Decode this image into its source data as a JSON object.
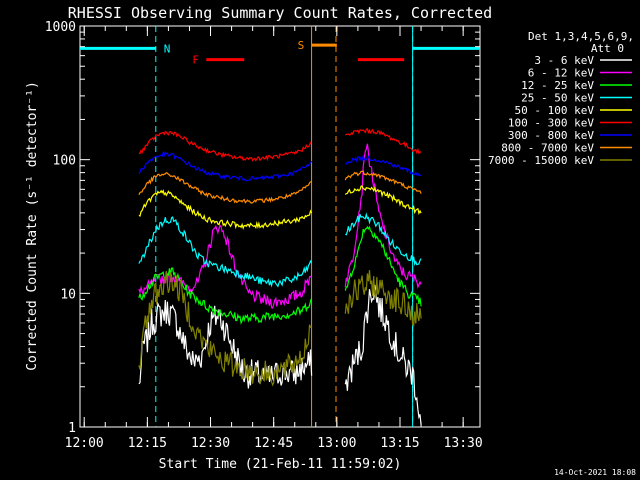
{
  "chart_data": {
    "type": "line",
    "title": "RHESSI Observing Summary Count Rates, Corrected",
    "xlabel": "Start Time (21-Feb-11 11:59:02)",
    "ylabel": "Corrected Count Rate (s⁻¹ detector⁻¹)",
    "yscale": "log",
    "ylim": [
      1,
      1000
    ],
    "xlim_min": [
      0,
      95
    ],
    "x_ticks": [
      {
        "min": 1,
        "label": "12:00"
      },
      {
        "min": 16,
        "label": "12:15"
      },
      {
        "min": 31,
        "label": "12:30"
      },
      {
        "min": 46,
        "label": "12:45"
      },
      {
        "min": 61,
        "label": "13:00"
      },
      {
        "min": 76,
        "label": "13:15"
      },
      {
        "min": 91,
        "label": "13:30"
      }
    ],
    "y_ticks": [
      {
        "v": 1,
        "label": "1"
      },
      {
        "v": 10,
        "label": "10"
      },
      {
        "v": 100,
        "label": "100"
      },
      {
        "v": 1000,
        "label": "1000"
      }
    ],
    "detectors": "Det 1,3,4,5,6,9,",
    "attenuator": "Att 0",
    "legend_placement": "top-right",
    "series": [
      {
        "name": "3 - 6 keV",
        "color": "#ffffff",
        "pts": [
          [
            14,
            2
          ],
          [
            15,
            4
          ],
          [
            16,
            4.5
          ],
          [
            17,
            6
          ],
          [
            19,
            7
          ],
          [
            21,
            7.5
          ],
          [
            23,
            6
          ],
          [
            25,
            4
          ],
          [
            27,
            3
          ],
          [
            29,
            3.5
          ],
          [
            31,
            6
          ],
          [
            33,
            7
          ],
          [
            35,
            5
          ],
          [
            37,
            3.5
          ],
          [
            39,
            2.5
          ],
          [
            42,
            2.5
          ],
          [
            45,
            2.3
          ],
          [
            48,
            2.6
          ],
          [
            51,
            2.5
          ],
          [
            53,
            2.8
          ],
          [
            55,
            3
          ]
        ],
        "pts2": [
          [
            63,
            2
          ],
          [
            65,
            3
          ],
          [
            67,
            4
          ],
          [
            68,
            7
          ],
          [
            69,
            10
          ],
          [
            70,
            11
          ],
          [
            71,
            8
          ],
          [
            73,
            6
          ],
          [
            75,
            4
          ],
          [
            77,
            3
          ],
          [
            79,
            2.5
          ],
          [
            80,
            1.8
          ],
          [
            81,
            1
          ]
        ]
      },
      {
        "name": "6 - 12 keV",
        "color": "#ff00ff",
        "pts": [
          [
            14,
            10
          ],
          [
            16,
            11
          ],
          [
            18,
            12.5
          ],
          [
            20,
            13
          ],
          [
            22,
            13.5
          ],
          [
            24,
            12
          ],
          [
            26,
            11
          ],
          [
            28,
            12
          ],
          [
            30,
            18
          ],
          [
            31.5,
            28
          ],
          [
            33,
            32
          ],
          [
            34.5,
            27
          ],
          [
            36,
            19
          ],
          [
            38,
            13
          ],
          [
            40,
            10
          ],
          [
            43,
            9
          ],
          [
            46,
            8.5
          ],
          [
            49,
            9
          ],
          [
            51,
            9.5
          ],
          [
            53,
            10.5
          ],
          [
            55,
            14
          ]
        ],
        "pts2": [
          [
            63,
            12
          ],
          [
            64,
            15
          ],
          [
            65,
            20
          ],
          [
            66,
            35
          ],
          [
            67,
            60
          ],
          [
            67.5,
            110
          ],
          [
            68,
            130
          ],
          [
            69,
            90
          ],
          [
            70,
            60
          ],
          [
            71,
            40
          ],
          [
            73,
            25
          ],
          [
            75,
            17
          ],
          [
            77,
            14
          ],
          [
            79,
            13
          ],
          [
            81,
            12
          ]
        ]
      },
      {
        "name": "12 - 25 keV",
        "color": "#00ff00",
        "pts": [
          [
            14,
            9
          ],
          [
            16,
            11
          ],
          [
            18,
            13
          ],
          [
            20,
            14
          ],
          [
            22,
            14.5
          ],
          [
            24,
            12
          ],
          [
            26,
            10
          ],
          [
            28,
            9
          ],
          [
            30,
            8
          ],
          [
            32,
            7.5
          ],
          [
            35,
            7
          ],
          [
            38,
            6.5
          ],
          [
            42,
            6.5
          ],
          [
            46,
            6.8
          ],
          [
            50,
            7
          ],
          [
            53,
            7.5
          ],
          [
            55,
            9
          ]
        ],
        "pts2": [
          [
            63,
            10
          ],
          [
            64,
            13
          ],
          [
            66,
            20
          ],
          [
            67,
            28
          ],
          [
            68,
            32
          ],
          [
            70,
            28
          ],
          [
            72,
            22
          ],
          [
            74,
            16
          ],
          [
            76,
            12
          ],
          [
            78,
            10
          ],
          [
            80,
            9
          ],
          [
            81,
            8.5
          ]
        ]
      },
      {
        "name": "25 - 50 keV",
        "color": "#00ffff",
        "pts": [
          [
            14,
            16
          ],
          [
            16,
            22
          ],
          [
            18,
            30
          ],
          [
            20,
            35
          ],
          [
            22,
            36
          ],
          [
            24,
            30
          ],
          [
            26,
            24
          ],
          [
            28,
            19
          ],
          [
            30,
            17
          ],
          [
            32,
            16
          ],
          [
            35,
            15
          ],
          [
            38,
            14
          ],
          [
            41,
            13
          ],
          [
            44,
            12
          ],
          [
            47,
            12
          ],
          [
            50,
            12.5
          ],
          [
            53,
            14
          ],
          [
            55,
            17
          ]
        ],
        "pts2": [
          [
            63,
            28
          ],
          [
            65,
            33
          ],
          [
            67,
            38
          ],
          [
            69,
            36
          ],
          [
            71,
            32
          ],
          [
            73,
            26
          ],
          [
            75,
            22
          ],
          [
            77,
            20
          ],
          [
            79,
            18
          ],
          [
            81,
            17
          ]
        ]
      },
      {
        "name": "50 - 100 keV",
        "color": "#ffff00",
        "pts": [
          [
            14,
            38
          ],
          [
            16,
            48
          ],
          [
            18,
            55
          ],
          [
            20,
            57
          ],
          [
            22,
            54
          ],
          [
            24,
            48
          ],
          [
            26,
            43
          ],
          [
            28,
            39
          ],
          [
            30,
            36
          ],
          [
            33,
            34
          ],
          [
            36,
            33
          ],
          [
            39,
            32
          ],
          [
            42,
            32
          ],
          [
            45,
            33
          ],
          [
            48,
            34
          ],
          [
            51,
            35
          ],
          [
            53,
            37
          ],
          [
            55,
            40
          ]
        ],
        "pts2": [
          [
            63,
            55
          ],
          [
            65,
            60
          ],
          [
            67,
            62
          ],
          [
            69,
            61
          ],
          [
            71,
            58
          ],
          [
            73,
            54
          ],
          [
            75,
            50
          ],
          [
            77,
            46
          ],
          [
            79,
            43
          ],
          [
            81,
            40
          ]
        ]
      },
      {
        "name": "100 - 300 keV",
        "color": "#ff0000",
        "pts": [
          [
            14,
            110
          ],
          [
            16,
            130
          ],
          [
            18,
            150
          ],
          [
            20,
            160
          ],
          [
            22,
            158
          ],
          [
            24,
            148
          ],
          [
            26,
            135
          ],
          [
            28,
            125
          ],
          [
            30,
            118
          ],
          [
            33,
            110
          ],
          [
            36,
            105
          ],
          [
            39,
            102
          ],
          [
            42,
            102
          ],
          [
            45,
            104
          ],
          [
            48,
            107
          ],
          [
            51,
            112
          ],
          [
            53,
            120
          ],
          [
            55,
            135
          ]
        ],
        "pts2": [
          [
            63,
            150
          ],
          [
            65,
            160
          ],
          [
            67,
            165
          ],
          [
            69,
            164
          ],
          [
            71,
            160
          ],
          [
            73,
            150
          ],
          [
            75,
            140
          ],
          [
            77,
            130
          ],
          [
            79,
            120
          ],
          [
            81,
            112
          ]
        ]
      },
      {
        "name": "300 - 800 keV",
        "color": "#0000ff",
        "pts": [
          [
            14,
            80
          ],
          [
            16,
            95
          ],
          [
            18,
            105
          ],
          [
            20,
            110
          ],
          [
            22,
            108
          ],
          [
            24,
            100
          ],
          [
            26,
            92
          ],
          [
            28,
            85
          ],
          [
            30,
            80
          ],
          [
            33,
            76
          ],
          [
            36,
            74
          ],
          [
            39,
            72
          ],
          [
            42,
            72
          ],
          [
            45,
            74
          ],
          [
            48,
            76
          ],
          [
            51,
            80
          ],
          [
            53,
            86
          ],
          [
            55,
            95
          ]
        ],
        "pts2": [
          [
            63,
            95
          ],
          [
            65,
            100
          ],
          [
            67,
            103
          ],
          [
            69,
            102
          ],
          [
            71,
            99
          ],
          [
            73,
            95
          ],
          [
            75,
            90
          ],
          [
            77,
            85
          ],
          [
            79,
            80
          ],
          [
            81,
            76
          ]
        ]
      },
      {
        "name": "800 - 7000 keV",
        "color": "#ff8c00",
        "pts": [
          [
            14,
            55
          ],
          [
            16,
            66
          ],
          [
            18,
            75
          ],
          [
            20,
            78
          ],
          [
            22,
            76
          ],
          [
            24,
            70
          ],
          [
            26,
            64
          ],
          [
            28,
            59
          ],
          [
            30,
            55
          ],
          [
            33,
            52
          ],
          [
            36,
            50
          ],
          [
            39,
            49
          ],
          [
            42,
            49
          ],
          [
            45,
            50
          ],
          [
            48,
            52
          ],
          [
            51,
            55
          ],
          [
            53,
            60
          ],
          [
            55,
            68
          ]
        ],
        "pts2": [
          [
            63,
            72
          ],
          [
            65,
            78
          ],
          [
            67,
            80
          ],
          [
            69,
            79
          ],
          [
            71,
            76
          ],
          [
            73,
            72
          ],
          [
            75,
            68
          ],
          [
            77,
            64
          ],
          [
            79,
            60
          ],
          [
            81,
            57
          ]
        ]
      },
      {
        "name": "7000 - 15000 keV",
        "color": "#808000",
        "pts": [
          [
            14,
            3
          ],
          [
            16,
            7
          ],
          [
            18,
            10
          ],
          [
            20,
            12
          ],
          [
            22,
            12.5
          ],
          [
            24,
            10
          ],
          [
            26,
            7
          ],
          [
            28,
            5
          ],
          [
            30,
            4
          ],
          [
            32,
            3.5
          ],
          [
            35,
            3
          ],
          [
            38,
            2.8
          ],
          [
            41,
            2.6
          ],
          [
            44,
            2.5
          ],
          [
            47,
            2.6
          ],
          [
            50,
            2.8
          ],
          [
            53,
            3.5
          ],
          [
            55,
            6
          ]
        ],
        "pts2": [
          [
            63,
            8
          ],
          [
            65,
            10
          ],
          [
            67,
            11
          ],
          [
            69,
            12
          ],
          [
            71,
            11
          ],
          [
            73,
            10
          ],
          [
            75,
            9
          ],
          [
            77,
            8
          ],
          [
            79,
            7
          ],
          [
            81,
            6.5
          ]
        ]
      }
    ],
    "annotations": [
      {
        "label": "N",
        "color": "#00ffff"
      },
      {
        "label": "F",
        "color": "#ff0000"
      },
      {
        "label": "S",
        "color": "#ff8c00"
      }
    ],
    "night_segments": [
      [
        0,
        18
      ],
      [
        79,
        95
      ]
    ],
    "night_value": 680,
    "night_dashes": [
      18,
      79
    ],
    "flare_segments": [
      [
        30,
        39
      ],
      [
        66,
        77
      ]
    ],
    "flare_value": 560,
    "saa_segment": [
      55,
      61
    ],
    "saa_value": 720,
    "saa_lines": [
      55,
      60.8
    ],
    "footer_date": "14-Oct-2021 18:08"
  }
}
